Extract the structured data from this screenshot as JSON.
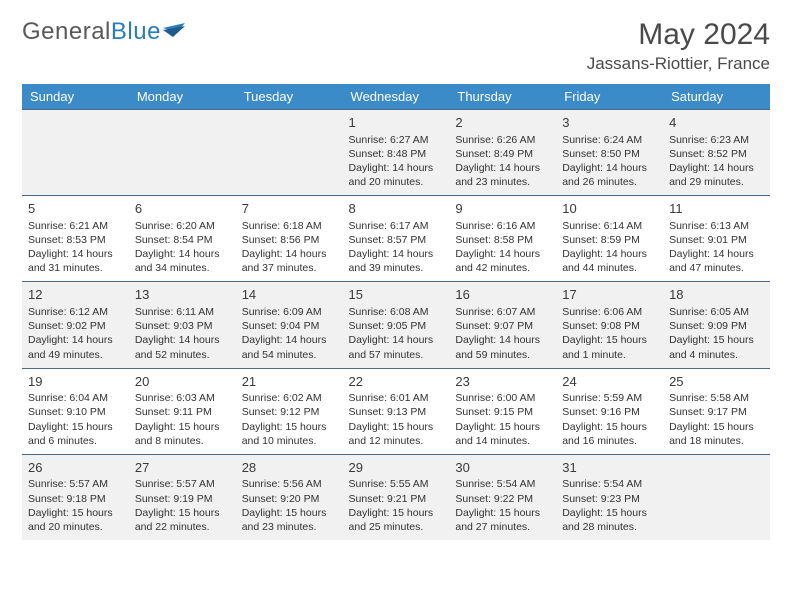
{
  "brand": {
    "part1": "General",
    "part2": "Blue"
  },
  "title": "May 2024",
  "location": "Jassans-Riottier, France",
  "colors": {
    "header_bg": "#3b8bc9",
    "header_text": "#ffffff",
    "row_alt_bg": "#f1f1f1",
    "row_border": "#4a6a8a",
    "text": "#323232",
    "title_text": "#4a4a4a",
    "logo_gray": "#5a5a5a",
    "logo_blue": "#2b7bbf"
  },
  "weekdays": [
    "Sunday",
    "Monday",
    "Tuesday",
    "Wednesday",
    "Thursday",
    "Friday",
    "Saturday"
  ],
  "weeks": [
    [
      null,
      null,
      null,
      {
        "n": "1",
        "sr": "Sunrise: 6:27 AM",
        "ss": "Sunset: 8:48 PM",
        "d1": "Daylight: 14 hours",
        "d2": "and 20 minutes."
      },
      {
        "n": "2",
        "sr": "Sunrise: 6:26 AM",
        "ss": "Sunset: 8:49 PM",
        "d1": "Daylight: 14 hours",
        "d2": "and 23 minutes."
      },
      {
        "n": "3",
        "sr": "Sunrise: 6:24 AM",
        "ss": "Sunset: 8:50 PM",
        "d1": "Daylight: 14 hours",
        "d2": "and 26 minutes."
      },
      {
        "n": "4",
        "sr": "Sunrise: 6:23 AM",
        "ss": "Sunset: 8:52 PM",
        "d1": "Daylight: 14 hours",
        "d2": "and 29 minutes."
      }
    ],
    [
      {
        "n": "5",
        "sr": "Sunrise: 6:21 AM",
        "ss": "Sunset: 8:53 PM",
        "d1": "Daylight: 14 hours",
        "d2": "and 31 minutes."
      },
      {
        "n": "6",
        "sr": "Sunrise: 6:20 AM",
        "ss": "Sunset: 8:54 PM",
        "d1": "Daylight: 14 hours",
        "d2": "and 34 minutes."
      },
      {
        "n": "7",
        "sr": "Sunrise: 6:18 AM",
        "ss": "Sunset: 8:56 PM",
        "d1": "Daylight: 14 hours",
        "d2": "and 37 minutes."
      },
      {
        "n": "8",
        "sr": "Sunrise: 6:17 AM",
        "ss": "Sunset: 8:57 PM",
        "d1": "Daylight: 14 hours",
        "d2": "and 39 minutes."
      },
      {
        "n": "9",
        "sr": "Sunrise: 6:16 AM",
        "ss": "Sunset: 8:58 PM",
        "d1": "Daylight: 14 hours",
        "d2": "and 42 minutes."
      },
      {
        "n": "10",
        "sr": "Sunrise: 6:14 AM",
        "ss": "Sunset: 8:59 PM",
        "d1": "Daylight: 14 hours",
        "d2": "and 44 minutes."
      },
      {
        "n": "11",
        "sr": "Sunrise: 6:13 AM",
        "ss": "Sunset: 9:01 PM",
        "d1": "Daylight: 14 hours",
        "d2": "and 47 minutes."
      }
    ],
    [
      {
        "n": "12",
        "sr": "Sunrise: 6:12 AM",
        "ss": "Sunset: 9:02 PM",
        "d1": "Daylight: 14 hours",
        "d2": "and 49 minutes."
      },
      {
        "n": "13",
        "sr": "Sunrise: 6:11 AM",
        "ss": "Sunset: 9:03 PM",
        "d1": "Daylight: 14 hours",
        "d2": "and 52 minutes."
      },
      {
        "n": "14",
        "sr": "Sunrise: 6:09 AM",
        "ss": "Sunset: 9:04 PM",
        "d1": "Daylight: 14 hours",
        "d2": "and 54 minutes."
      },
      {
        "n": "15",
        "sr": "Sunrise: 6:08 AM",
        "ss": "Sunset: 9:05 PM",
        "d1": "Daylight: 14 hours",
        "d2": "and 57 minutes."
      },
      {
        "n": "16",
        "sr": "Sunrise: 6:07 AM",
        "ss": "Sunset: 9:07 PM",
        "d1": "Daylight: 14 hours",
        "d2": "and 59 minutes."
      },
      {
        "n": "17",
        "sr": "Sunrise: 6:06 AM",
        "ss": "Sunset: 9:08 PM",
        "d1": "Daylight: 15 hours",
        "d2": "and 1 minute."
      },
      {
        "n": "18",
        "sr": "Sunrise: 6:05 AM",
        "ss": "Sunset: 9:09 PM",
        "d1": "Daylight: 15 hours",
        "d2": "and 4 minutes."
      }
    ],
    [
      {
        "n": "19",
        "sr": "Sunrise: 6:04 AM",
        "ss": "Sunset: 9:10 PM",
        "d1": "Daylight: 15 hours",
        "d2": "and 6 minutes."
      },
      {
        "n": "20",
        "sr": "Sunrise: 6:03 AM",
        "ss": "Sunset: 9:11 PM",
        "d1": "Daylight: 15 hours",
        "d2": "and 8 minutes."
      },
      {
        "n": "21",
        "sr": "Sunrise: 6:02 AM",
        "ss": "Sunset: 9:12 PM",
        "d1": "Daylight: 15 hours",
        "d2": "and 10 minutes."
      },
      {
        "n": "22",
        "sr": "Sunrise: 6:01 AM",
        "ss": "Sunset: 9:13 PM",
        "d1": "Daylight: 15 hours",
        "d2": "and 12 minutes."
      },
      {
        "n": "23",
        "sr": "Sunrise: 6:00 AM",
        "ss": "Sunset: 9:15 PM",
        "d1": "Daylight: 15 hours",
        "d2": "and 14 minutes."
      },
      {
        "n": "24",
        "sr": "Sunrise: 5:59 AM",
        "ss": "Sunset: 9:16 PM",
        "d1": "Daylight: 15 hours",
        "d2": "and 16 minutes."
      },
      {
        "n": "25",
        "sr": "Sunrise: 5:58 AM",
        "ss": "Sunset: 9:17 PM",
        "d1": "Daylight: 15 hours",
        "d2": "and 18 minutes."
      }
    ],
    [
      {
        "n": "26",
        "sr": "Sunrise: 5:57 AM",
        "ss": "Sunset: 9:18 PM",
        "d1": "Daylight: 15 hours",
        "d2": "and 20 minutes."
      },
      {
        "n": "27",
        "sr": "Sunrise: 5:57 AM",
        "ss": "Sunset: 9:19 PM",
        "d1": "Daylight: 15 hours",
        "d2": "and 22 minutes."
      },
      {
        "n": "28",
        "sr": "Sunrise: 5:56 AM",
        "ss": "Sunset: 9:20 PM",
        "d1": "Daylight: 15 hours",
        "d2": "and 23 minutes."
      },
      {
        "n": "29",
        "sr": "Sunrise: 5:55 AM",
        "ss": "Sunset: 9:21 PM",
        "d1": "Daylight: 15 hours",
        "d2": "and 25 minutes."
      },
      {
        "n": "30",
        "sr": "Sunrise: 5:54 AM",
        "ss": "Sunset: 9:22 PM",
        "d1": "Daylight: 15 hours",
        "d2": "and 27 minutes."
      },
      {
        "n": "31",
        "sr": "Sunrise: 5:54 AM",
        "ss": "Sunset: 9:23 PM",
        "d1": "Daylight: 15 hours",
        "d2": "and 28 minutes."
      },
      null
    ]
  ]
}
